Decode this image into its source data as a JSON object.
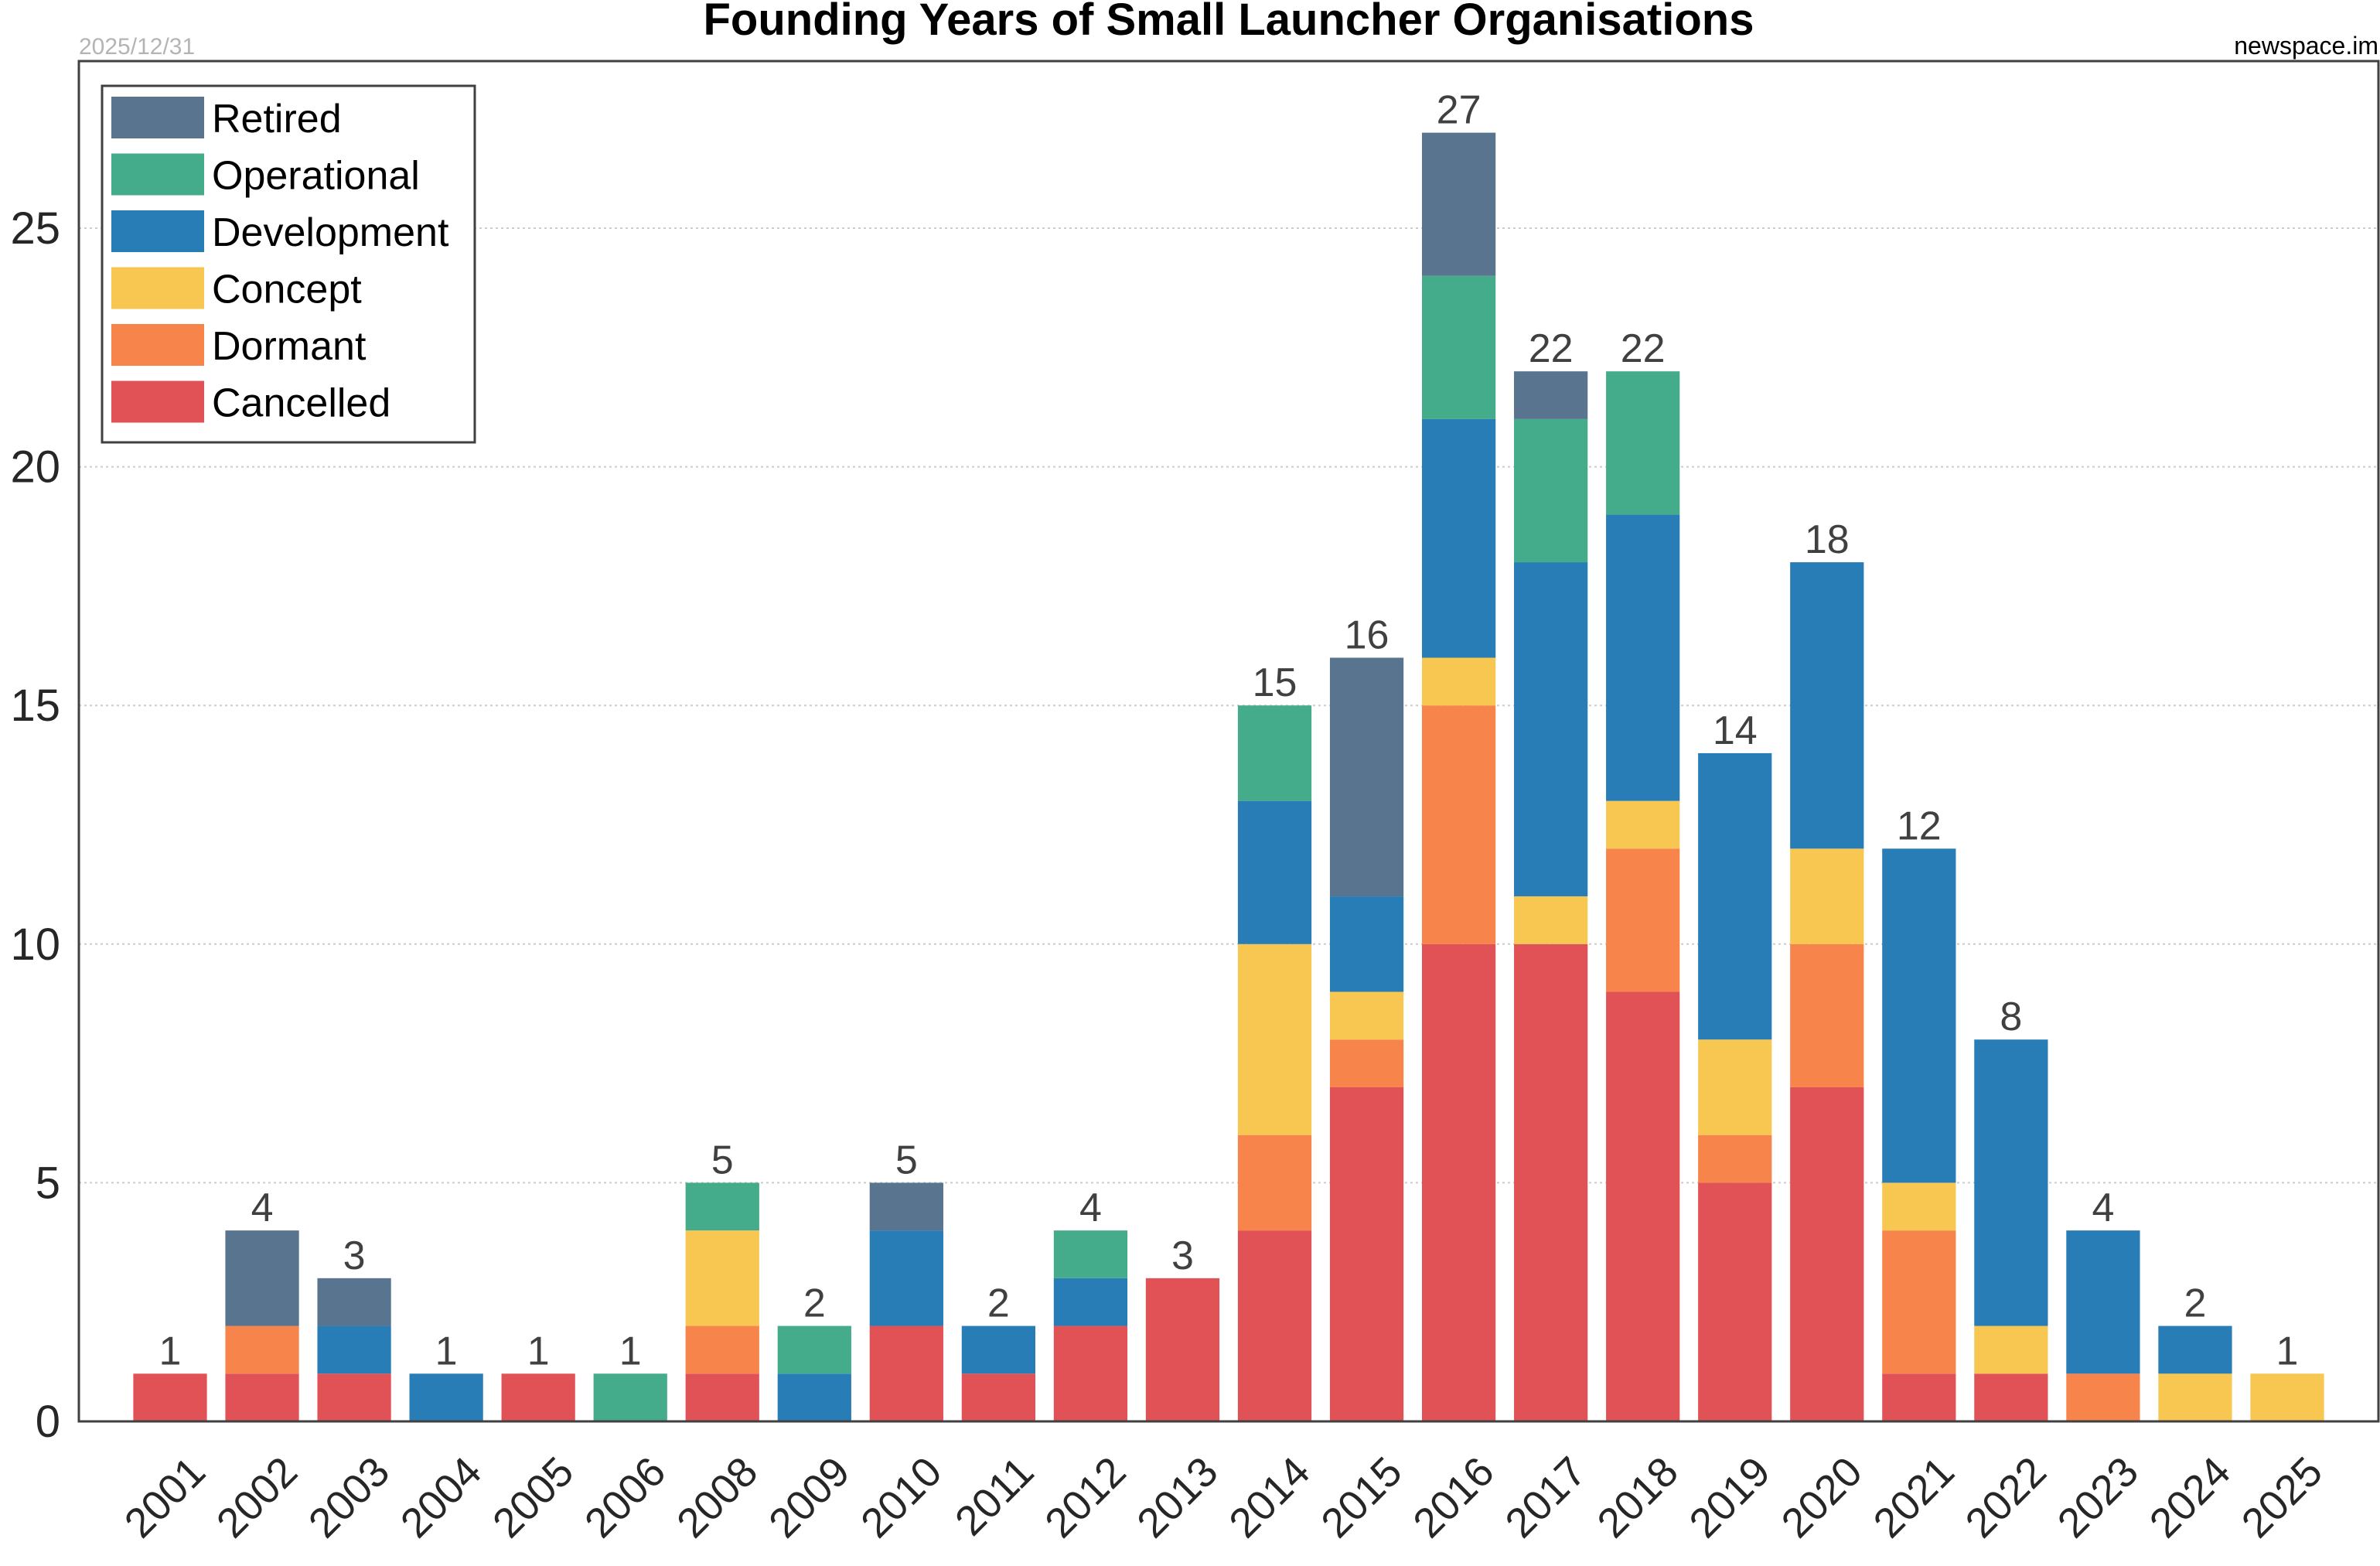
{
  "header": {
    "date": "2025/12/31",
    "source": "newspace.im"
  },
  "chart_data": {
    "type": "bar",
    "stacked": true,
    "title": "Founding Years of Small Launcher Organisations",
    "xlabel": "",
    "ylabel": "",
    "ylim": [
      0,
      28.5
    ],
    "yticks": [
      0,
      5,
      10,
      15,
      20,
      25
    ],
    "grid": true,
    "legend_position": "top-left",
    "categories": [
      "2001",
      "2002",
      "2003",
      "2004",
      "2005",
      "2006",
      "2008",
      "2009",
      "2010",
      "2011",
      "2012",
      "2013",
      "2014",
      "2015",
      "2016",
      "2017",
      "2018",
      "2019",
      "2020",
      "2021",
      "2022",
      "2023",
      "2024",
      "2025"
    ],
    "series": [
      {
        "name": "Cancelled",
        "color": "#e15257",
        "values": [
          1,
          1,
          1,
          0,
          1,
          0,
          1,
          0,
          2,
          1,
          2,
          3,
          4,
          7,
          10,
          10,
          9,
          5,
          7,
          1,
          1,
          0,
          0,
          0
        ]
      },
      {
        "name": "Dormant",
        "color": "#f7844b",
        "values": [
          0,
          1,
          0,
          0,
          0,
          0,
          1,
          0,
          0,
          0,
          0,
          0,
          2,
          1,
          5,
          0,
          3,
          1,
          3,
          3,
          0,
          1,
          0,
          0
        ]
      },
      {
        "name": "Concept",
        "color": "#f8c752",
        "values": [
          0,
          0,
          0,
          0,
          0,
          0,
          2,
          0,
          0,
          0,
          0,
          0,
          4,
          1,
          1,
          1,
          1,
          2,
          2,
          1,
          1,
          0,
          1,
          1
        ]
      },
      {
        "name": "Development",
        "color": "#287db6",
        "values": [
          0,
          0,
          1,
          1,
          0,
          0,
          0,
          1,
          2,
          1,
          1,
          0,
          3,
          2,
          5,
          7,
          6,
          6,
          6,
          7,
          6,
          3,
          1,
          0
        ]
      },
      {
        "name": "Operational",
        "color": "#44ab8b",
        "values": [
          0,
          0,
          0,
          0,
          0,
          1,
          1,
          1,
          0,
          0,
          1,
          0,
          2,
          0,
          3,
          3,
          3,
          0,
          0,
          0,
          0,
          0,
          0,
          0
        ]
      },
      {
        "name": "Retired",
        "color": "#58748f",
        "values": [
          0,
          2,
          1,
          0,
          0,
          0,
          0,
          0,
          1,
          0,
          0,
          0,
          0,
          5,
          3,
          1,
          0,
          0,
          0,
          0,
          0,
          0,
          0,
          0
        ]
      }
    ],
    "totals": [
      1,
      4,
      3,
      1,
      1,
      1,
      5,
      2,
      5,
      2,
      4,
      3,
      15,
      16,
      27,
      22,
      22,
      14,
      18,
      12,
      8,
      4,
      2,
      1
    ],
    "legend_order": [
      "Retired",
      "Operational",
      "Development",
      "Concept",
      "Dormant",
      "Cancelled"
    ]
  }
}
